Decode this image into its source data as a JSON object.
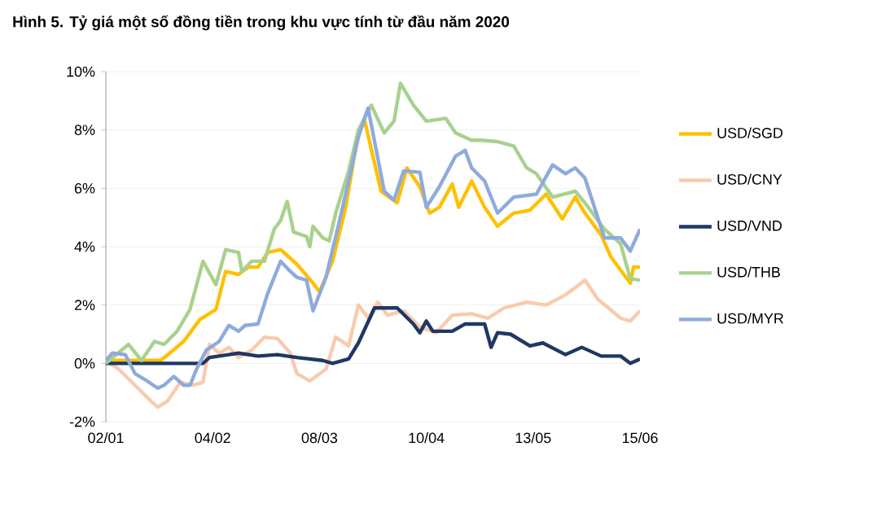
{
  "chart_data": {
    "type": "line",
    "title": "Hình 5. Tỷ giá một số đồng tiền trong khu vực tính từ đầu năm 2020",
    "xlim": [
      "2020-01-02",
      "2020-06-15"
    ],
    "xticks": [
      {
        "value": "2020-01-02",
        "label": "02/01"
      },
      {
        "value": "2020-02-04",
        "label": "04/02"
      },
      {
        "value": "2020-03-08",
        "label": "08/03"
      },
      {
        "value": "2020-04-10",
        "label": "10/04"
      },
      {
        "value": "2020-05-13",
        "label": "13/05"
      },
      {
        "value": "2020-06-15",
        "label": "15/06"
      }
    ],
    "ylim": [
      -2,
      10
    ],
    "yticks": [
      {
        "value": -2,
        "label": "-2%"
      },
      {
        "value": 0,
        "label": "0%"
      },
      {
        "value": 2,
        "label": "2%"
      },
      {
        "value": 4,
        "label": "4%"
      },
      {
        "value": 6,
        "label": "6%"
      },
      {
        "value": 8,
        "label": "8%"
      },
      {
        "value": 10,
        "label": "10%"
      }
    ],
    "grid": "y",
    "legend": "right",
    "marker": "none",
    "line_style": "solid",
    "series": [
      {
        "name": "USD/SGD",
        "color": "#ffc000",
        "x": [
          "2020-01-02",
          "2020-01-19",
          "2020-01-26",
          "2020-01-31",
          "2020-02-05",
          "2020-02-08",
          "2020-02-12",
          "2020-02-15",
          "2020-02-18",
          "2020-02-21",
          "2020-02-25",
          "2020-03-01",
          "2020-03-06",
          "2020-03-08",
          "2020-03-12",
          "2020-03-16",
          "2020-03-20",
          "2020-03-22",
          "2020-03-27",
          "2020-04-01",
          "2020-04-04",
          "2020-04-08",
          "2020-04-11",
          "2020-04-14",
          "2020-04-18",
          "2020-04-20",
          "2020-04-24",
          "2020-04-28",
          "2020-05-02",
          "2020-05-07",
          "2020-05-12",
          "2020-05-17",
          "2020-05-22",
          "2020-05-26",
          "2020-05-29",
          "2020-06-03",
          "2020-06-06",
          "2020-06-12",
          "2020-06-13",
          "2020-06-15"
        ],
        "values": [
          0.1,
          0.1,
          0.75,
          1.5,
          1.85,
          3.15,
          3.05,
          3.3,
          3.3,
          3.8,
          3.9,
          3.4,
          2.75,
          2.45,
          3.5,
          5.3,
          7.9,
          8.3,
          5.9,
          5.5,
          6.7,
          6.05,
          5.15,
          5.35,
          6.15,
          5.35,
          6.25,
          5.35,
          4.7,
          5.15,
          5.25,
          5.8,
          4.95,
          5.7,
          5.15,
          4.4,
          3.65,
          2.75,
          3.3,
          3.3
        ]
      },
      {
        "name": "USD/CNY",
        "color": "#f8cbad",
        "x": [
          "2020-01-02",
          "2020-01-06",
          "2020-01-11",
          "2020-01-16",
          "2020-01-18",
          "2020-01-21",
          "2020-01-25",
          "2020-01-29",
          "2020-02-01",
          "2020-02-03",
          "2020-02-06",
          "2020-02-09",
          "2020-02-12",
          "2020-02-16",
          "2020-02-20",
          "2020-02-24",
          "2020-02-28",
          "2020-03-01",
          "2020-03-05",
          "2020-03-10",
          "2020-03-13",
          "2020-03-17",
          "2020-03-20",
          "2020-03-23",
          "2020-03-26",
          "2020-03-29",
          "2020-04-03",
          "2020-04-08",
          "2020-04-13",
          "2020-04-18",
          "2020-04-24",
          "2020-04-29",
          "2020-05-04",
          "2020-05-11",
          "2020-05-17",
          "2020-05-23",
          "2020-05-29",
          "2020-06-02",
          "2020-06-09",
          "2020-06-12",
          "2020-06-15"
        ],
        "values": [
          0.1,
          -0.2,
          -0.75,
          -1.3,
          -1.5,
          -1.3,
          -0.65,
          -0.75,
          -0.65,
          0.65,
          0.35,
          0.55,
          0.2,
          0.45,
          0.9,
          0.85,
          0.35,
          -0.35,
          -0.6,
          -0.2,
          0.9,
          0.6,
          2.0,
          1.55,
          2.1,
          1.65,
          1.8,
          1.25,
          1.05,
          1.65,
          1.7,
          1.55,
          1.9,
          2.1,
          2.0,
          2.35,
          2.85,
          2.2,
          1.55,
          1.45,
          1.8
        ]
      },
      {
        "name": "USD/VND",
        "color": "#1f3864",
        "x": [
          "2020-01-02",
          "2020-02-01",
          "2020-02-03",
          "2020-02-09",
          "2020-02-12",
          "2020-02-18",
          "2020-02-24",
          "2020-03-01",
          "2020-03-09",
          "2020-03-12",
          "2020-03-17",
          "2020-03-20",
          "2020-03-25",
          "2020-04-01",
          "2020-04-06",
          "2020-04-08",
          "2020-04-10",
          "2020-04-12",
          "2020-04-18",
          "2020-04-22",
          "2020-04-28",
          "2020-04-30",
          "2020-05-02",
          "2020-05-06",
          "2020-05-12",
          "2020-05-16",
          "2020-05-23",
          "2020-05-28",
          "2020-06-03",
          "2020-06-09",
          "2020-06-12",
          "2020-06-15"
        ],
        "values": [
          0,
          0,
          0.2,
          0.3,
          0.35,
          0.25,
          0.3,
          0.2,
          0.1,
          0,
          0.15,
          0.7,
          1.9,
          1.9,
          1.35,
          1.05,
          1.45,
          1.1,
          1.1,
          1.35,
          1.35,
          0.55,
          1.05,
          1.0,
          0.6,
          0.7,
          0.3,
          0.55,
          0.25,
          0.25,
          0,
          0.15
        ]
      },
      {
        "name": "USD/THB",
        "color": "#a9d18e",
        "x": [
          "2020-01-02",
          "2020-01-09",
          "2020-01-13",
          "2020-01-17",
          "2020-01-20",
          "2020-01-24",
          "2020-01-28",
          "2020-02-01",
          "2020-02-05",
          "2020-02-08",
          "2020-02-12",
          "2020-02-13",
          "2020-02-16",
          "2020-02-20",
          "2020-02-23",
          "2020-02-25",
          "2020-02-27",
          "2020-02-29",
          "2020-03-04",
          "2020-03-05",
          "2020-03-06",
          "2020-03-09",
          "2020-03-11",
          "2020-03-13",
          "2020-03-17",
          "2020-03-20",
          "2020-03-24",
          "2020-03-28",
          "2020-03-31",
          "2020-04-02",
          "2020-04-06",
          "2020-04-10",
          "2020-04-16",
          "2020-04-19",
          "2020-04-24",
          "2020-04-27",
          "2020-05-02",
          "2020-05-07",
          "2020-05-11",
          "2020-05-14",
          "2020-05-19",
          "2020-05-26",
          "2020-05-29",
          "2020-06-04",
          "2020-06-09",
          "2020-06-12",
          "2020-06-15"
        ],
        "values": [
          0,
          0.65,
          0.1,
          0.75,
          0.65,
          1.1,
          1.85,
          3.5,
          2.7,
          3.9,
          3.8,
          3.15,
          3.5,
          3.5,
          4.6,
          4.9,
          5.55,
          4.5,
          4.35,
          4.0,
          4.7,
          4.3,
          4.2,
          5.15,
          6.6,
          8.0,
          8.85,
          7.9,
          8.3,
          9.6,
          8.85,
          8.3,
          8.4,
          7.9,
          7.65,
          7.65,
          7.6,
          7.45,
          6.7,
          6.5,
          5.7,
          5.9,
          5.5,
          4.6,
          4.1,
          2.9,
          2.85
        ]
      },
      {
        "name": "USD/MYR",
        "color": "#8faadc",
        "x": [
          "2020-01-02",
          "2020-01-04",
          "2020-01-08",
          "2020-01-11",
          "2020-01-14",
          "2020-01-18",
          "2020-01-20",
          "2020-01-23",
          "2020-01-26",
          "2020-01-28",
          "2020-01-30",
          "2020-02-02",
          "2020-02-06",
          "2020-02-09",
          "2020-02-12",
          "2020-02-14",
          "2020-02-18",
          "2020-02-21",
          "2020-02-25",
          "2020-02-28",
          "2020-03-01",
          "2020-03-04",
          "2020-03-06",
          "2020-03-10",
          "2020-03-14",
          "2020-03-17",
          "2020-03-20",
          "2020-03-23",
          "2020-03-28",
          "2020-03-31",
          "2020-04-03",
          "2020-04-08",
          "2020-04-10",
          "2020-04-14",
          "2020-04-19",
          "2020-04-22",
          "2020-04-24",
          "2020-04-28",
          "2020-05-02",
          "2020-05-07",
          "2020-05-14",
          "2020-05-19",
          "2020-05-23",
          "2020-05-26",
          "2020-05-29",
          "2020-06-04",
          "2020-06-09",
          "2020-06-12",
          "2020-06-15"
        ],
        "values": [
          0.1,
          0.35,
          0.3,
          -0.35,
          -0.55,
          -0.85,
          -0.75,
          -0.45,
          -0.75,
          -0.75,
          -0.2,
          0.45,
          0.75,
          1.3,
          1.1,
          1.3,
          1.35,
          2.4,
          3.5,
          3.15,
          2.95,
          2.85,
          1.8,
          2.95,
          4.8,
          6.25,
          7.75,
          8.75,
          5.9,
          5.6,
          6.6,
          6.55,
          5.35,
          6.05,
          7.1,
          7.3,
          6.7,
          6.25,
          5.15,
          5.7,
          5.8,
          6.8,
          6.5,
          6.7,
          6.35,
          4.3,
          4.3,
          3.85,
          4.6
        ]
      }
    ]
  }
}
